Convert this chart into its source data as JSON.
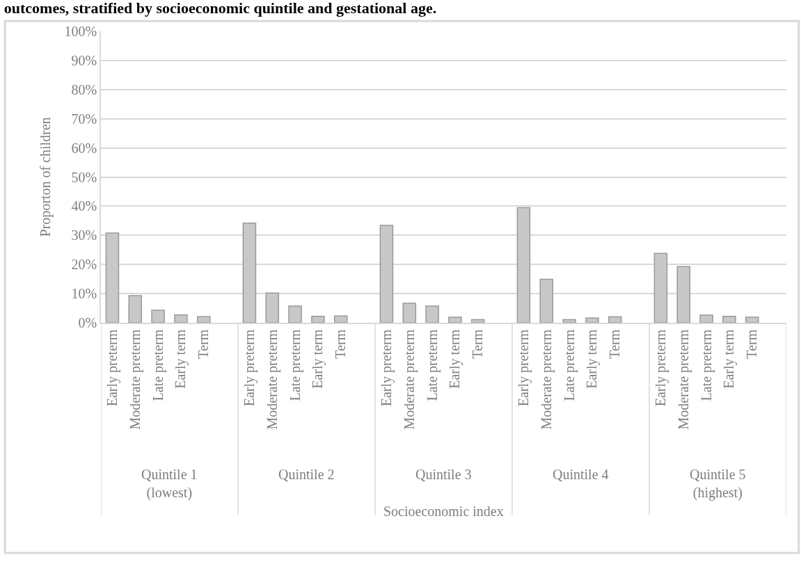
{
  "chart_data": {
    "type": "bar",
    "title": "outcomes, stratified by socioeconomic quintile and gestational age.",
    "ylabel": "Proporton of children",
    "categories": [
      "Early preterm",
      "Moderate preterm",
      "Late preterm",
      "Early term",
      "Term",
      null,
      "Early preterm",
      "Moderate preterm",
      "Late preterm",
      "Early term",
      "Term",
      null,
      "Early preterm",
      "Moderate preterm",
      "Late preterm",
      "Early term",
      "Term",
      null,
      "Early preterm",
      "Moderate preterm",
      "Late preterm",
      "Early term",
      "Term",
      null,
      "Early preterm",
      "Moderate preterm",
      "Late preterm",
      "Early term",
      "Term",
      null
    ],
    "values": [
      30.8,
      9.3,
      4.3,
      2.7,
      2.1,
      null,
      34.2,
      10.2,
      5.7,
      2.2,
      2.3,
      null,
      33.4,
      6.7,
      5.7,
      1.9,
      1.1,
      null,
      39.5,
      14.9,
      1.1,
      1.6,
      2.0,
      null,
      23.8,
      19.3,
      2.6,
      2.2,
      1.9,
      null
    ],
    "color": "#c8c8c8",
    "annotations": [
      "Quintile 1\n(lowest)",
      "Quintile 2",
      "Quintile 3",
      "Quintile 4",
      "Quintile 5\n(highest)",
      "Socioeconomic index"
    ],
    "ylim": [
      0,
      100
    ],
    "yticks": [
      {
        "value": 0,
        "label": "0%"
      },
      {
        "value": 10,
        "label": "10%"
      },
      {
        "value": 20,
        "label": "20%"
      },
      {
        "value": 30,
        "label": "30%"
      },
      {
        "value": 40,
        "label": "40%"
      },
      {
        "value": 50,
        "label": "50%"
      },
      {
        "value": 60,
        "label": "60%"
      },
      {
        "value": 70,
        "label": "70%"
      },
      {
        "value": 80,
        "label": "80%"
      },
      {
        "value": 90,
        "label": "90%"
      },
      {
        "value": 100,
        "label": "100%"
      }
    ],
    "grid": "y",
    "legend": false
  }
}
